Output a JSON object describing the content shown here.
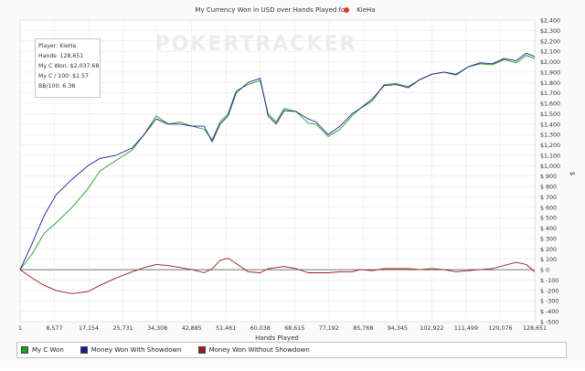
{
  "chart_data": {
    "type": "line",
    "title_prefix": "My Currency Won in USD over Hands Played for",
    "player_name": "KieHa",
    "xlabel": "Hands Played",
    "ylabel": "$",
    "xlim": [
      1,
      128651
    ],
    "ylim": [
      -500,
      2400
    ],
    "x_ticks": [
      1,
      8577,
      17154,
      25731,
      34308,
      42885,
      51461,
      60038,
      68615,
      77192,
      85768,
      94345,
      102922,
      111499,
      120076,
      128651
    ],
    "y_ticks": [
      "$ -500",
      "$ -400",
      "$ -300",
      "$ -200",
      "$ -100",
      "$ 0",
      "$ 100",
      "$ 200",
      "$ 300",
      "$ 400",
      "$ 500",
      "$ 600",
      "$ 700",
      "$ 800",
      "$ 900",
      "$1,000",
      "$1,100",
      "$1,200",
      "$1,300",
      "$1,400",
      "$1,500",
      "$1,600",
      "$1,700",
      "$1,800",
      "$1,900",
      "$2,000",
      "$2,100",
      "$2,200",
      "$2,300",
      "$2,400"
    ],
    "y_tick_values": [
      -500,
      -400,
      -300,
      -200,
      -100,
      0,
      100,
      200,
      300,
      400,
      500,
      600,
      700,
      800,
      900,
      1000,
      1100,
      1200,
      1300,
      1400,
      1500,
      1600,
      1700,
      1800,
      1900,
      2000,
      2100,
      2200,
      2300,
      2400
    ],
    "grid": true,
    "legend_position": "bottom",
    "watermark": "POKERTRACKER",
    "series": [
      {
        "name": "My C Won",
        "color": "#1e9e1e",
        "x": [
          1,
          3000,
          6000,
          9000,
          13000,
          17000,
          20000,
          24000,
          28000,
          31000,
          34000,
          37000,
          40000,
          43000,
          46000,
          48000,
          50000,
          52000,
          54000,
          57000,
          60000,
          62000,
          64000,
          66000,
          69000,
          72000,
          74000,
          77000,
          80000,
          83000,
          85000,
          88000,
          91000,
          94000,
          97000,
          100000,
          103000,
          106000,
          109000,
          112000,
          115000,
          118000,
          121000,
          124000,
          126500,
          128651
        ],
        "values": [
          0,
          150,
          350,
          450,
          600,
          780,
          950,
          1050,
          1150,
          1300,
          1480,
          1400,
          1420,
          1380,
          1350,
          1250,
          1420,
          1500,
          1720,
          1780,
          1820,
          1500,
          1420,
          1550,
          1520,
          1410,
          1400,
          1280,
          1350,
          1480,
          1550,
          1620,
          1780,
          1790,
          1760,
          1830,
          1880,
          1900,
          1870,
          1950,
          1980,
          1970,
          2020,
          1990,
          2060,
          2030
        ]
      },
      {
        "name": "Money Won With Showdown",
        "color": "#1a1a9c",
        "x": [
          1,
          3000,
          6000,
          9000,
          13000,
          17000,
          20000,
          24000,
          28000,
          31000,
          34000,
          37000,
          40000,
          43000,
          46000,
          48000,
          50000,
          52000,
          54000,
          57000,
          60000,
          62000,
          64000,
          66000,
          69000,
          72000,
          74000,
          77000,
          80000,
          83000,
          85000,
          88000,
          91000,
          94000,
          97000,
          100000,
          103000,
          106000,
          109000,
          112000,
          115000,
          118000,
          121000,
          124000,
          126500,
          128651
        ],
        "values": [
          0,
          250,
          520,
          720,
          870,
          1000,
          1070,
          1100,
          1170,
          1300,
          1450,
          1400,
          1400,
          1380,
          1380,
          1230,
          1400,
          1480,
          1700,
          1800,
          1840,
          1480,
          1400,
          1530,
          1520,
          1450,
          1420,
          1300,
          1380,
          1500,
          1550,
          1640,
          1770,
          1780,
          1750,
          1830,
          1880,
          1900,
          1880,
          1950,
          1990,
          1980,
          2030,
          2010,
          2080,
          2050
        ]
      },
      {
        "name": "Money Won Without Showdown",
        "color": "#9c1a1a",
        "x": [
          1,
          3000,
          6000,
          9000,
          13000,
          17000,
          20000,
          24000,
          28000,
          31000,
          34000,
          37000,
          40000,
          43000,
          46000,
          48000,
          50000,
          52000,
          54000,
          57000,
          60000,
          62000,
          64000,
          66000,
          69000,
          72000,
          74000,
          77000,
          80000,
          83000,
          85000,
          88000,
          91000,
          94000,
          97000,
          100000,
          103000,
          106000,
          109000,
          112000,
          115000,
          118000,
          121000,
          124000,
          126500,
          128651
        ],
        "values": [
          0,
          -80,
          -150,
          -200,
          -230,
          -210,
          -150,
          -80,
          -20,
          20,
          50,
          40,
          20,
          0,
          -30,
          10,
          90,
          110,
          60,
          -20,
          -30,
          10,
          20,
          30,
          10,
          -30,
          -30,
          -30,
          -20,
          -20,
          0,
          -10,
          10,
          10,
          10,
          0,
          10,
          0,
          -20,
          -10,
          0,
          10,
          40,
          70,
          50,
          -20
        ]
      }
    ]
  },
  "info_box": {
    "player": "Player: KieHa",
    "hands": "Hands: 128,651",
    "won": "My C Won: $2,037.68",
    "per100": "My C / 100: $1.57",
    "bb100": "BB/100: 6.38"
  }
}
